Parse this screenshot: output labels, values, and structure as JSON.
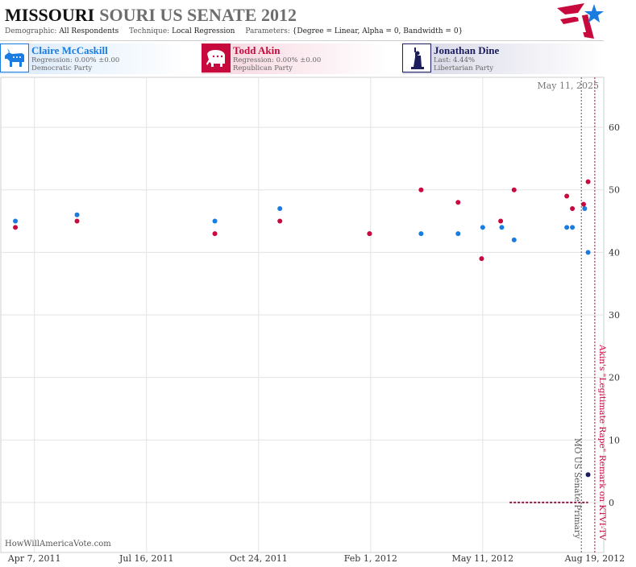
{
  "header": {
    "title_main": "MISSOURI",
    "title_rest": "SOURI US SENATE 2012",
    "meta": [
      {
        "key": "Demographic:",
        "value": "All Respondents"
      },
      {
        "key": "Technique:",
        "value": "Local Regression"
      },
      {
        "key": "Parameters:",
        "value": "{Degree = Linear, Alpha = 0, Bandwidth = 0}"
      }
    ]
  },
  "candidates": [
    {
      "name": "Claire McCaskill",
      "line1": "Regression: 0.00% ±0.00",
      "line2": "Democratic Party",
      "color": "#1a7be0",
      "icon": "donkey-icon"
    },
    {
      "name": "Todd Akin",
      "line1": "Regression: 0.00% ±0.00",
      "line2": "Republican Party",
      "color": "#c8093e",
      "icon": "elephant-icon"
    },
    {
      "name": "Jonathan Dine",
      "line1": "Last: 4.44%",
      "line2": "Libertarian Party",
      "color": "#1c1c5e",
      "icon": "statue-of-liberty-icon"
    }
  ],
  "watermark": "HowWillAmericaVote.com",
  "chart_data": {
    "type": "scatter",
    "title": "MISSOURI SOURI US SENATE 2012",
    "x_axis": {
      "type": "date",
      "ticks": [
        "2011-04-07",
        "2011-07-16",
        "2011-10-24",
        "2012-02-01",
        "2012-05-11",
        "2012-08-19"
      ],
      "tick_labels": [
        "Apr 7, 2011",
        "Jul 16, 2011",
        "Oct 24, 2011",
        "Feb 1, 2012",
        "May 11, 2012",
        "Aug 19, 2012"
      ],
      "range": [
        "2011-03-08",
        "2012-08-27"
      ]
    },
    "y_axis": {
      "ticks": [
        0,
        10,
        20,
        30,
        40,
        50,
        60
      ],
      "range": [
        -8,
        68
      ],
      "position": "right"
    },
    "grid": true,
    "series": [
      {
        "name": "Claire McCaskill",
        "color": "#1a7be0",
        "points": [
          {
            "x": "2011-03-21",
            "y": 45
          },
          {
            "x": "2011-05-15",
            "y": 46
          },
          {
            "x": "2011-09-15",
            "y": 45
          },
          {
            "x": "2011-11-12",
            "y": 47
          },
          {
            "x": "2012-01-31",
            "y": 43
          },
          {
            "x": "2012-03-17",
            "y": 43
          },
          {
            "x": "2012-04-19",
            "y": 43
          },
          {
            "x": "2012-05-11",
            "y": 44
          },
          {
            "x": "2012-05-28",
            "y": 44
          },
          {
            "x": "2012-06-08",
            "y": 42
          },
          {
            "x": "2012-07-25",
            "y": 44
          },
          {
            "x": "2012-07-30",
            "y": 44
          },
          {
            "x": "2012-08-10",
            "y": 47
          },
          {
            "x": "2012-08-13",
            "y": 40
          }
        ]
      },
      {
        "name": "Todd Akin",
        "color": "#c8093e",
        "points": [
          {
            "x": "2011-03-21",
            "y": 44
          },
          {
            "x": "2011-05-15",
            "y": 45
          },
          {
            "x": "2011-09-15",
            "y": 43
          },
          {
            "x": "2011-11-12",
            "y": 45
          },
          {
            "x": "2012-01-31",
            "y": 43
          },
          {
            "x": "2012-03-17",
            "y": 50
          },
          {
            "x": "2012-04-19",
            "y": 48
          },
          {
            "x": "2012-05-10",
            "y": 39
          },
          {
            "x": "2012-05-27",
            "y": 45
          },
          {
            "x": "2012-06-08",
            "y": 50
          },
          {
            "x": "2012-07-25",
            "y": 49
          },
          {
            "x": "2012-07-30",
            "y": 47
          },
          {
            "x": "2012-08-09",
            "y": 47.7
          },
          {
            "x": "2012-08-13",
            "y": 51.3
          }
        ]
      },
      {
        "name": "Jonathan Dine",
        "color": "#1c1c5e",
        "points": [
          {
            "x": "2012-08-13",
            "y": 4.44
          }
        ],
        "range_line": {
          "from": "2012-06-04",
          "to": "2012-08-13",
          "y": 0
        }
      }
    ],
    "events": [
      {
        "date": "2012-08-07",
        "label": "MO US Senate Primary",
        "color": "#555555"
      },
      {
        "date": "2012-08-19",
        "label": "Akin's \"Legitimate Rape\" Remark on KTVI-TV",
        "color": "#c8093e"
      }
    ],
    "current_marker": {
      "label": "May 11, 2025"
    }
  }
}
